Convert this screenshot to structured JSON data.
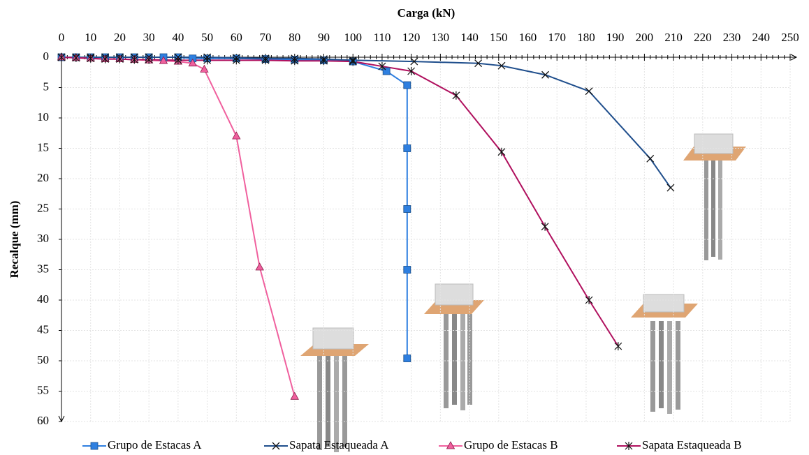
{
  "chart_data": {
    "type": "line",
    "xlabel": "Carga (kN)",
    "ylabel": "Recalque (mm)",
    "xlim": [
      0,
      250
    ],
    "xticks": [
      0,
      10,
      20,
      30,
      40,
      50,
      60,
      70,
      80,
      90,
      100,
      110,
      120,
      130,
      140,
      150,
      160,
      170,
      180,
      190,
      200,
      210,
      220,
      230,
      240,
      250
    ],
    "ylim": [
      0,
      60
    ],
    "yticks": [
      0,
      5,
      10,
      15,
      20,
      25,
      30,
      35,
      40,
      45,
      50,
      55,
      60
    ],
    "y_inverted": true,
    "x_axis_top": true,
    "grid": true,
    "legend": "bottom",
    "series": [
      {
        "name": "Grupo de Estacas A",
        "color": "#2e7fe0",
        "marker": "square",
        "x": [
          0,
          5,
          10,
          15,
          20,
          25,
          30,
          35,
          40,
          45,
          50,
          60,
          70,
          80,
          90,
          100,
          111.5,
          118.6,
          118.6,
          118.6,
          118.6,
          118.6
        ],
        "values": [
          0,
          0,
          0,
          0,
          0,
          0,
          0,
          0,
          0,
          0.2,
          0.2,
          0.2,
          0.3,
          0.4,
          0.5,
          0.7,
          2.3,
          4.6,
          15,
          25,
          35,
          49.6
        ]
      },
      {
        "name": "Sapata Estaqueada A",
        "color": "#1f4e8c",
        "marker": "x",
        "x": [
          0,
          5,
          10,
          15,
          20,
          25,
          30,
          40,
          50,
          60,
          70,
          80,
          90,
          100,
          121,
          143,
          151,
          166,
          181,
          202,
          209
        ],
        "values": [
          0,
          0,
          0,
          0,
          0,
          0,
          0,
          0,
          0,
          0.1,
          0.2,
          0.2,
          0.3,
          0.5,
          0.7,
          1.0,
          1.4,
          2.9,
          5.6,
          16.7,
          21.5
        ]
      },
      {
        "name": "Grupo de Estacas B",
        "color": "#f0609e",
        "marker": "triangle",
        "x": [
          0,
          5,
          10,
          15,
          20,
          25,
          30,
          35,
          40,
          45,
          49,
          60,
          68,
          80
        ],
        "values": [
          0,
          0.1,
          0.2,
          0.3,
          0.3,
          0.4,
          0.5,
          0.6,
          0.7,
          1.0,
          2.0,
          13,
          34.6,
          55.9
        ]
      },
      {
        "name": "Sapata Estaqueada B",
        "color": "#b0105e",
        "marker": "asterisk",
        "x": [
          0,
          5,
          10,
          15,
          20,
          25,
          30,
          40,
          50,
          60,
          70,
          80,
          90,
          100,
          110,
          120,
          135.4,
          151,
          165.9,
          181,
          191
        ],
        "values": [
          0,
          0.1,
          0.2,
          0.3,
          0.3,
          0.4,
          0.4,
          0.5,
          0.5,
          0.5,
          0.5,
          0.6,
          0.6,
          0.7,
          1.5,
          2.3,
          6.3,
          15.6,
          27.9,
          40,
          47.6
        ]
      }
    ]
  }
}
